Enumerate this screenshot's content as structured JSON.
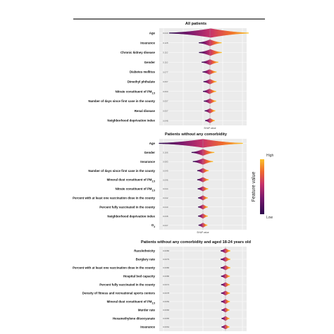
{
  "colors": {
    "panel_bg": "#ebebeb",
    "grid": "#ffffff",
    "gradient": [
      "#2d0a4e",
      "#7a1a6e",
      "#c8336a",
      "#ef6a2e",
      "#fbc22a"
    ],
    "zero_line": "#9a9a9a"
  },
  "chart_data": [
    {
      "type": "beeswarm",
      "title": "All patients",
      "xlabel": "SHAP value",
      "features": [
        {
          "label": "Age",
          "sub": "",
          "importance": "0.040",
          "center": 0.02,
          "spread": 0.9,
          "offset": -0.05
        },
        {
          "label": "Insurance",
          "sub": "",
          "importance": "0.128",
          "center": 0.0,
          "spread": 0.25,
          "offset": 0.02
        },
        {
          "label": "Chronic kidney disease",
          "sub": "",
          "importance": "0.110",
          "center": 0.01,
          "spread": 0.25,
          "offset": 0.0
        },
        {
          "label": "Gender",
          "sub": "",
          "importance": "0.110",
          "center": 0.0,
          "spread": 0.18,
          "offset": 0.0
        },
        {
          "label": "Diabetes mellitus",
          "sub": "",
          "importance": "0.077",
          "center": -0.01,
          "spread": 0.15,
          "offset": 0.0
        },
        {
          "label": "Dimethyl phthalate",
          "sub": "",
          "importance": "0.067",
          "center": 0.0,
          "spread": 0.14,
          "offset": 0.0
        },
        {
          "label": "Nitrate constituent of PM",
          "sub": "2.5",
          "importance": "0.060",
          "center": -0.01,
          "spread": 0.14,
          "offset": 0.0
        },
        {
          "label": "Number of days since first case in the county",
          "sub": "",
          "importance": "0.057",
          "center": 0.0,
          "spread": 0.13,
          "offset": 0.0
        },
        {
          "label": "Renal disease",
          "sub": "",
          "importance": "0.057",
          "center": 0.0,
          "spread": 0.11,
          "offset": 0.0
        },
        {
          "label": "Neighborhood deprivation index",
          "sub": "",
          "importance": "0.048",
          "center": 0.0,
          "spread": 0.1,
          "offset": 0.0
        }
      ]
    },
    {
      "type": "beeswarm",
      "title": "Patients without any comorbidity",
      "xlabel": "SHAP value",
      "features": [
        {
          "label": "Age",
          "sub": "",
          "importance": "0.402",
          "center": 0.0,
          "spread": 0.95,
          "offset": -0.05
        },
        {
          "label": "Gender",
          "sub": "",
          "importance": "0.166",
          "center": 0.0,
          "spread": 0.25,
          "offset": 0.0
        },
        {
          "label": "Insurance",
          "sub": "",
          "importance": "0.083",
          "center": 0.0,
          "spread": 0.22,
          "offset": 0.0
        },
        {
          "label": "Number of days since first case in the county",
          "sub": "",
          "importance": "0.049",
          "center": 0.0,
          "spread": 0.12,
          "offset": 0.0
        },
        {
          "label": "Mineral dust constituent of PM",
          "sub": "2.5",
          "importance": "0.046",
          "center": 0.0,
          "spread": 0.12,
          "offset": 0.0
        },
        {
          "label": "Nitrate constituent of PM",
          "sub": "2.5",
          "importance": "0.044",
          "center": 0.0,
          "spread": 0.11,
          "offset": 0.0
        },
        {
          "label": "Percent with at least one vaccination dose in the county",
          "sub": "",
          "importance": "0.042",
          "center": 0.0,
          "spread": 0.1,
          "offset": 0.0
        },
        {
          "label": "Percent fully vaccinated in the county",
          "sub": "",
          "importance": "0.040",
          "center": 0.0,
          "spread": 0.1,
          "offset": 0.0
        },
        {
          "label": "Neighborhood deprivation index",
          "sub": "",
          "importance": "0.038",
          "center": 0.0,
          "spread": 0.1,
          "offset": 0.0
        },
        {
          "label": "O",
          "sub": "3",
          "importance": "0.037",
          "center": 0.0,
          "spread": 0.09,
          "offset": 0.0
        }
      ],
      "legend": {
        "title": "Feature value",
        "high": "High",
        "low": "Low"
      }
    },
    {
      "type": "beeswarm",
      "title": "Patients without any comorbidity and aged 18-24 years old",
      "xlabel": "",
      "features": [
        {
          "label": "Race/ethnicity",
          "sub": "",
          "importance": "0.0080",
          "center": 0.0,
          "spread": 0.1,
          "offset": 0.0
        },
        {
          "label": "Burglary rate",
          "sub": "",
          "importance": "0.0079",
          "center": 0.0,
          "spread": 0.1,
          "offset": 0.0
        },
        {
          "label": "Percent with at least one vaccination dose in the county",
          "sub": "",
          "importance": "0.0086",
          "center": 0.0,
          "spread": 0.1,
          "offset": 0.0
        },
        {
          "label": "Hospital bed capacity",
          "sub": "",
          "importance": "0.0086",
          "center": 0.0,
          "spread": 0.09,
          "offset": 0.0
        },
        {
          "label": "Percent fully vaccinated in the county",
          "sub": "",
          "importance": "0.0074",
          "center": 0.0,
          "spread": 0.09,
          "offset": 0.0
        },
        {
          "label": "Density of fitness and recreational sports centers",
          "sub": "",
          "importance": "0.0078",
          "center": 0.0,
          "spread": 0.09,
          "offset": 0.0
        },
        {
          "label": "Mineral dust constituent of PM",
          "sub": "2.5",
          "importance": "0.0069",
          "center": 0.0,
          "spread": 0.09,
          "offset": 0.0
        },
        {
          "label": "Murder rate",
          "sub": "",
          "importance": "0.0066",
          "center": 0.0,
          "spread": 0.08,
          "offset": 0.0
        },
        {
          "label": "Hexamethylene diisocyanate",
          "sub": "",
          "importance": "0.0065",
          "center": 0.0,
          "spread": 0.08,
          "offset": 0.0
        },
        {
          "label": "Insurance",
          "sub": "",
          "importance": "0.0064",
          "center": 0.0,
          "spread": 0.08,
          "offset": 0.0
        }
      ]
    }
  ]
}
